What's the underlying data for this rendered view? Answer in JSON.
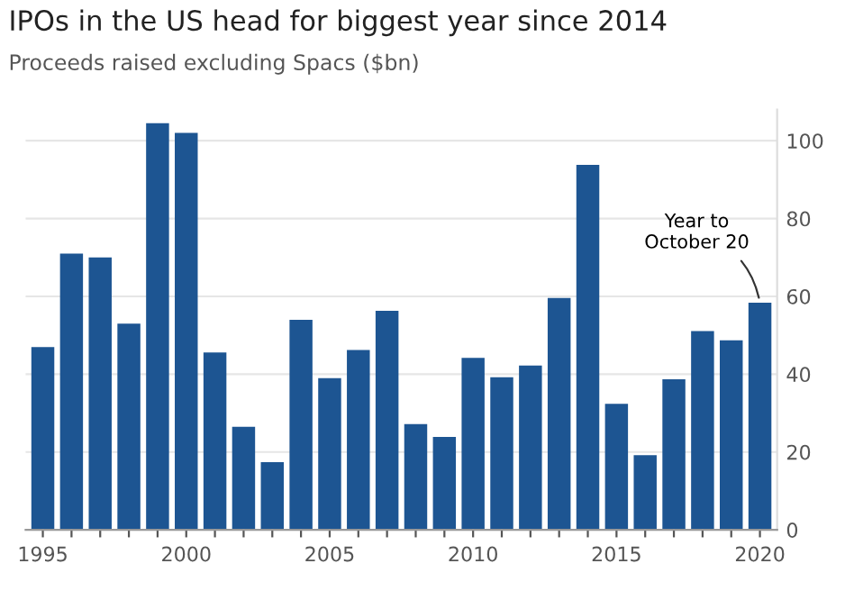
{
  "chart_data": {
    "type": "bar",
    "title": "IPOs in the US head for biggest year since 2014",
    "subtitle": "Proceeds raised excluding Spacs ($bn)",
    "x": [
      1995,
      1996,
      1997,
      1998,
      1999,
      2000,
      2001,
      2002,
      2003,
      2004,
      2005,
      2006,
      2007,
      2008,
      2009,
      2010,
      2011,
      2012,
      2013,
      2014,
      2015,
      2016,
      2017,
      2018,
      2019,
      2020
    ],
    "values": [
      47,
      71,
      70,
      53,
      104.5,
      102,
      45.6,
      26.5,
      17.4,
      54,
      39,
      46.2,
      56.3,
      27.2,
      23.9,
      44.2,
      39.2,
      42.2,
      59.6,
      93.8,
      32.4,
      19.2,
      38.7,
      51.1,
      48.7,
      58.4
    ],
    "color": "#1d5592",
    "xlim": [
      1994.4,
      2020.6
    ],
    "xticks": [
      1995,
      {
        "value": 1996,
        "label": null
      },
      {
        "value": 1997,
        "label": null
      },
      {
        "value": 1998,
        "label": null
      },
      {
        "value": 1999,
        "label": null
      },
      2000,
      {
        "value": 2001,
        "label": null
      },
      {
        "value": 2002,
        "label": null
      },
      {
        "value": 2003,
        "label": null
      },
      {
        "value": 2004,
        "label": null
      },
      2005,
      {
        "value": 2006,
        "label": null
      },
      {
        "value": 2007,
        "label": null
      },
      {
        "value": 2008,
        "label": null
      },
      {
        "value": 2009,
        "label": null
      },
      2010,
      {
        "value": 2011,
        "label": null
      },
      {
        "value": 2012,
        "label": null
      },
      {
        "value": 2013,
        "label": null
      },
      {
        "value": 2014,
        "label": null
      },
      2015,
      {
        "value": 2016,
        "label": null
      },
      {
        "value": 2017,
        "label": null
      },
      {
        "value": 2018,
        "label": null
      },
      {
        "value": 2019,
        "label": null
      },
      2020
    ],
    "ylim": [
      0,
      108
    ],
    "yticks": [
      0,
      20,
      40,
      60,
      80,
      100
    ],
    "grid": "y",
    "annotations": [
      {
        "text": "Year to\nOctober 20",
        "x": 2020,
        "y": 58.4
      }
    ]
  }
}
